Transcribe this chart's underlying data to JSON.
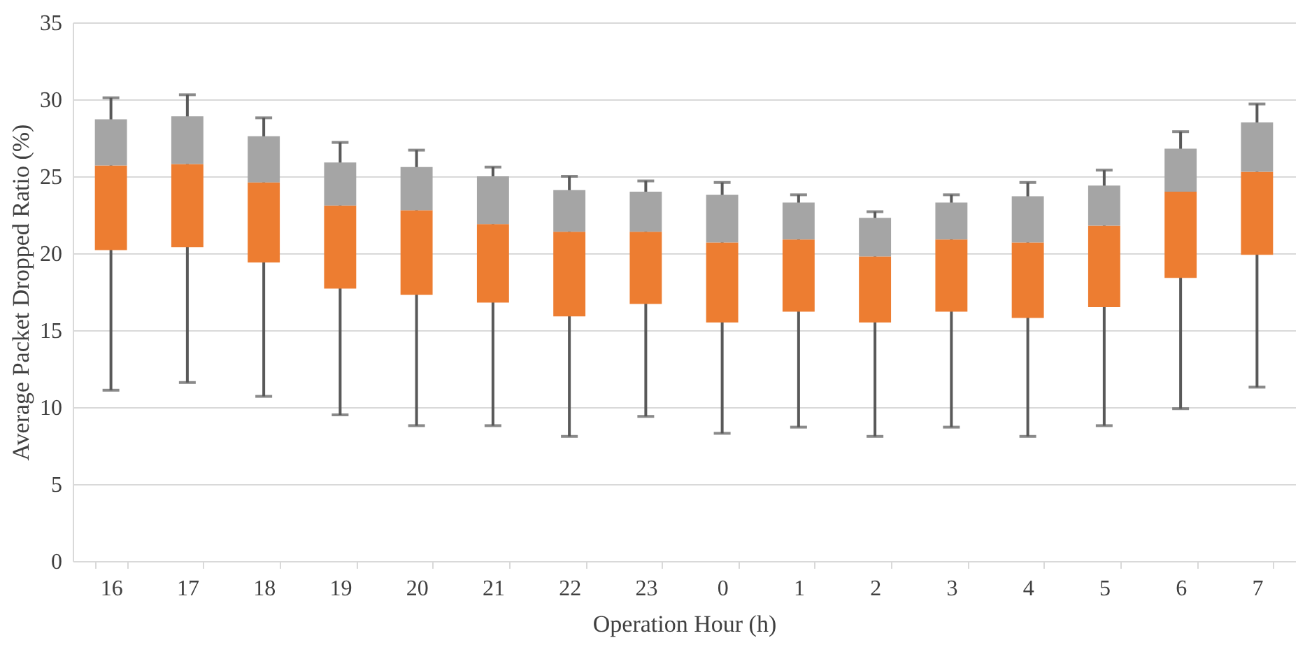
{
  "chart_data": {
    "type": "box",
    "xlabel": "Operation Hour (h)",
    "ylabel": "Average Packet Dropped Ratio (%)",
    "categories": [
      "16",
      "17",
      "18",
      "19",
      "20",
      "21",
      "22",
      "23",
      "0",
      "1",
      "2",
      "3",
      "4",
      "5",
      "6",
      "7"
    ],
    "series": [
      {
        "color": "#ed7d31",
        "boxes": [
          {
            "low": 11.1,
            "q1": 20.2,
            "median": 25.7,
            "q3": 28.7,
            "high": 30.1
          },
          {
            "low": 11.6,
            "q1": 20.4,
            "median": 25.8,
            "q3": 28.9,
            "high": 30.3
          },
          {
            "low": 10.7,
            "q1": 19.4,
            "median": 24.6,
            "q3": 27.6,
            "high": 28.8
          },
          {
            "low": 9.5,
            "q1": 17.7,
            "median": 23.1,
            "q3": 25.9,
            "high": 27.2
          },
          {
            "low": 8.8,
            "q1": 17.3,
            "median": 22.8,
            "q3": 25.6,
            "high": 26.7
          },
          {
            "low": 8.8,
            "q1": 16.8,
            "median": 21.9,
            "q3": 25.0,
            "high": 25.6
          },
          {
            "low": 8.1,
            "q1": 15.9,
            "median": 21.4,
            "q3": 24.1,
            "high": 25.0
          },
          {
            "low": 9.4,
            "q1": 16.7,
            "median": 21.4,
            "q3": 24.0,
            "high": 24.7
          },
          {
            "low": 8.3,
            "q1": 15.5,
            "median": 20.7,
            "q3": 23.8,
            "high": 24.6
          },
          {
            "low": 8.7,
            "q1": 16.2,
            "median": 20.9,
            "q3": 23.3,
            "high": 23.8
          },
          {
            "low": 8.1,
            "q1": 15.5,
            "median": 19.8,
            "q3": 22.3,
            "high": 22.7
          },
          {
            "low": 8.7,
            "q1": 16.2,
            "median": 20.9,
            "q3": 23.3,
            "high": 23.8
          },
          {
            "low": 8.1,
            "q1": 15.8,
            "median": 20.7,
            "q3": 23.7,
            "high": 24.6
          },
          {
            "low": 8.8,
            "q1": 16.5,
            "median": 21.8,
            "q3": 24.4,
            "high": 25.4
          },
          {
            "low": 9.9,
            "q1": 18.4,
            "median": 24.0,
            "q3": 26.8,
            "high": 27.9
          },
          {
            "low": 11.3,
            "q1": 19.9,
            "median": 25.3,
            "q3": 28.5,
            "high": 29.7
          }
        ]
      }
    ],
    "ylim": [
      0,
      35
    ],
    "yticks": [
      0,
      5,
      10,
      15,
      20,
      25,
      30,
      35
    ],
    "grid": "y"
  }
}
